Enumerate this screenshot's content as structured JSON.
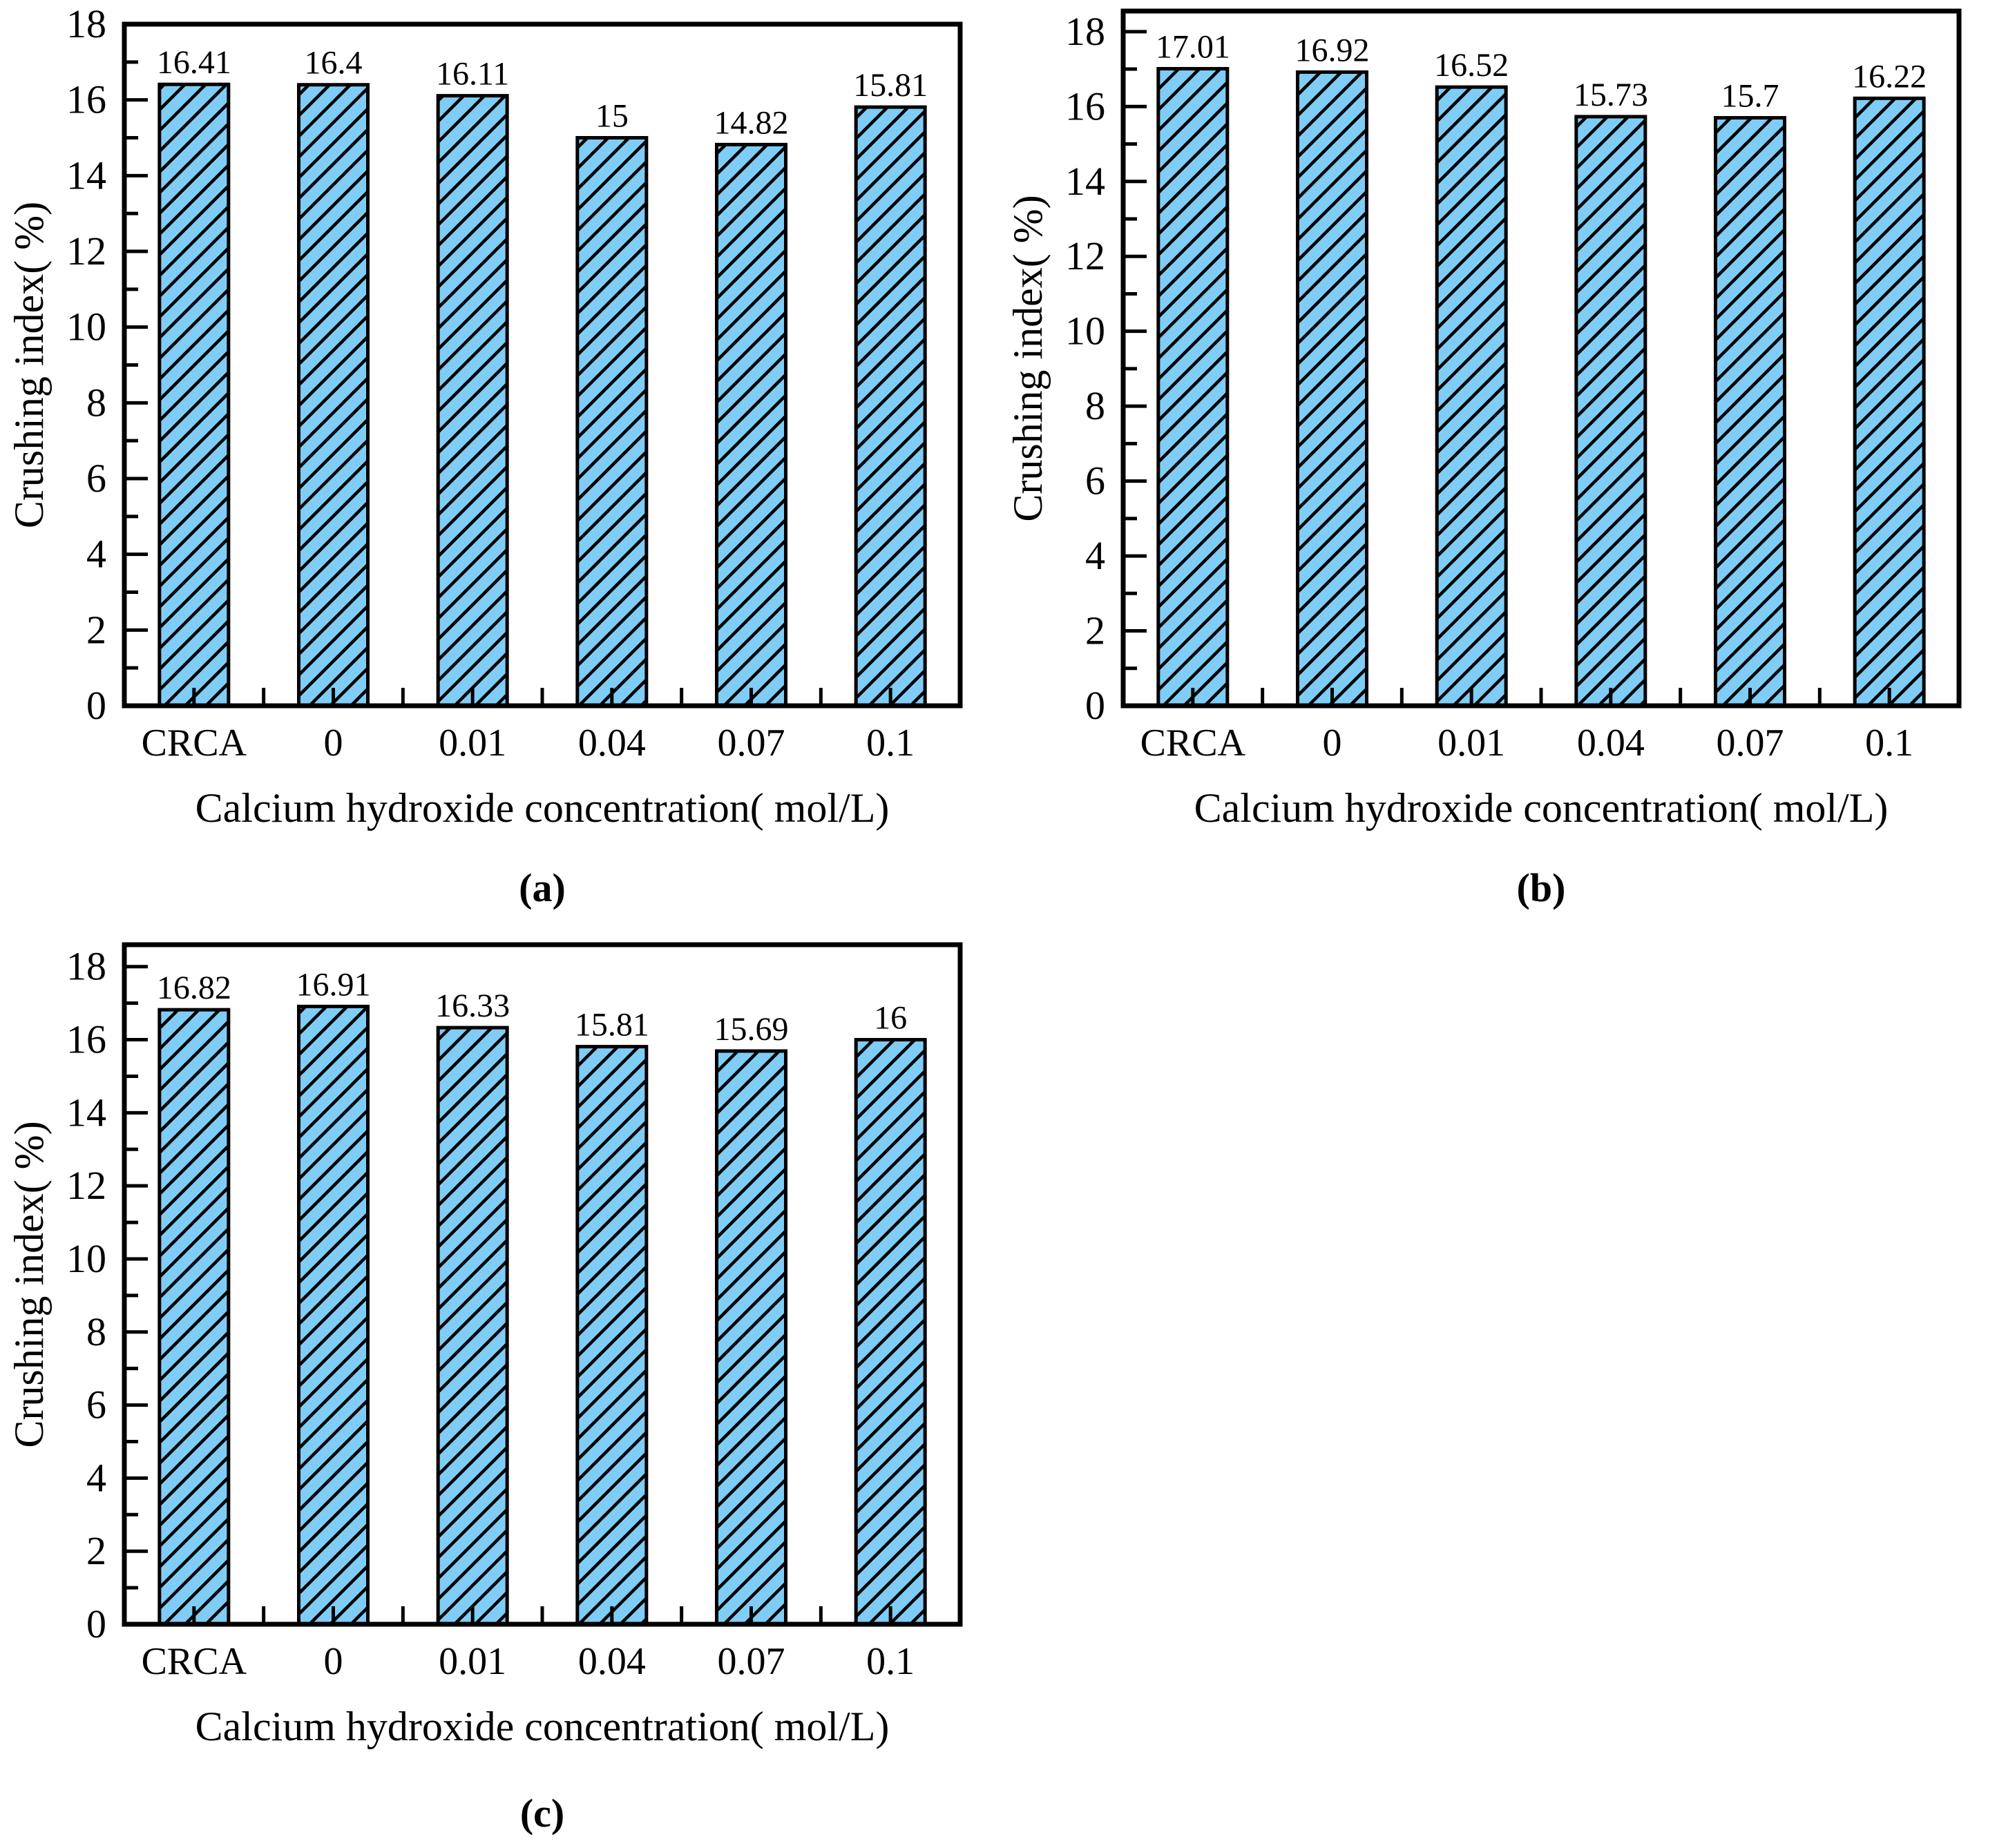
{
  "figure": {
    "bar_fill": "#7FCDF6",
    "hatch_color": "#000000",
    "axis_color": "#000000",
    "text_color": "#000000",
    "background": "#ffffff"
  },
  "chart_data": [
    {
      "type": "bar",
      "panel": "(a)",
      "categories": [
        "CRCA",
        "0",
        "0.01",
        "0.04",
        "0.07",
        "0.1"
      ],
      "values": [
        16.41,
        16.4,
        16.11,
        15,
        14.82,
        15.81
      ],
      "value_labels": [
        "16.41",
        "16.4",
        "16.11",
        "15",
        "14.82",
        "15.81"
      ],
      "title": "",
      "xlabel": "Calcium hydroxide concentration( mol/L)",
      "ylabel": "Crushing index( %)",
      "ylim": [
        0,
        18
      ],
      "yticks": [
        0,
        2,
        4,
        6,
        8,
        10,
        12,
        14,
        16,
        18
      ],
      "grid": false,
      "legend": false
    },
    {
      "type": "bar",
      "panel": "(b)",
      "categories": [
        "CRCA",
        "0",
        "0.01",
        "0.04",
        "0.07",
        "0.1"
      ],
      "values": [
        17.01,
        16.92,
        16.52,
        15.73,
        15.7,
        16.22
      ],
      "value_labels": [
        "17.01",
        "16.92",
        "16.52",
        "15.73",
        "15.7",
        "16.22"
      ],
      "title": "",
      "xlabel": "Calcium hydroxide concentration( mol/L)",
      "ylabel": "Crushing index( %)",
      "ylim": [
        0,
        18.55
      ],
      "yticks": [
        0,
        2,
        4,
        6,
        8,
        10,
        12,
        14,
        16,
        18
      ],
      "grid": false,
      "legend": false
    },
    {
      "type": "bar",
      "panel": "(c)",
      "categories": [
        "CRCA",
        "0",
        "0.01",
        "0.04",
        "0.07",
        "0.1"
      ],
      "values": [
        16.82,
        16.91,
        16.33,
        15.81,
        15.69,
        16
      ],
      "value_labels": [
        "16.82",
        "16.91",
        "16.33",
        "15.81",
        "15.69",
        "16"
      ],
      "title": "",
      "xlabel": "Calcium hydroxide concentration( mol/L)",
      "ylabel": "Crushing index( %)",
      "ylim": [
        0,
        18.6
      ],
      "yticks": [
        0,
        2,
        4,
        6,
        8,
        10,
        12,
        14,
        16,
        18
      ],
      "grid": false,
      "legend": false
    }
  ]
}
